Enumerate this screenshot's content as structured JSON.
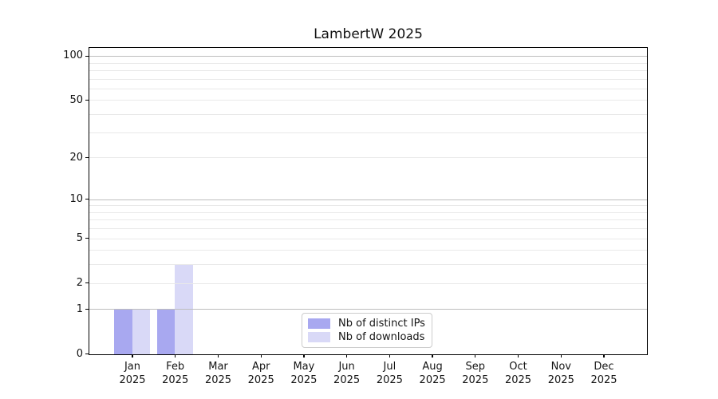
{
  "chart_data": {
    "type": "bar",
    "title": "LambertW 2025",
    "x": {
      "categories": [
        "Jan",
        "Feb",
        "Mar",
        "Apr",
        "May",
        "Jun",
        "Jul",
        "Aug",
        "Sep",
        "Oct",
        "Nov",
        "Dec"
      ],
      "year_label": "2025"
    },
    "series": [
      {
        "key": "distinct-ips",
        "name": "Nb of distinct IPs",
        "color": "#a8a8f0",
        "values": [
          1,
          1,
          0,
          0,
          0,
          0,
          0,
          0,
          0,
          0,
          0,
          0
        ]
      },
      {
        "key": "downloads",
        "name": "Nb of downloads",
        "color": "#d9d9f7",
        "values": [
          1,
          3,
          0,
          0,
          0,
          0,
          0,
          0,
          0,
          0,
          0,
          0
        ]
      }
    ],
    "y_axis": {
      "scale": "log1p",
      "tick_labels": [
        "0",
        "1",
        "2",
        "5",
        "10",
        "20",
        "50",
        "100"
      ],
      "tick_values": [
        0,
        1,
        2,
        5,
        10,
        20,
        50,
        100
      ],
      "gridlines_major": [
        1,
        10,
        100
      ],
      "gridlines_minor": [
        2,
        3,
        4,
        5,
        6,
        7,
        8,
        9,
        20,
        30,
        40,
        50,
        60,
        70,
        80,
        90
      ],
      "ylim": [
        0,
        113.5
      ]
    },
    "legend": {
      "position": "lower center"
    },
    "grid": true
  },
  "colors": {
    "bar_distinct_ips": "#a8a8f0",
    "bar_downloads": "#d9d9f7",
    "gridline_major": "#bdbdbd",
    "gridline_minor": "#e9e9e9",
    "axis_spine": "#000000",
    "text": "#141414",
    "legend_border": "#cccccc",
    "background": "#ffffff"
  }
}
